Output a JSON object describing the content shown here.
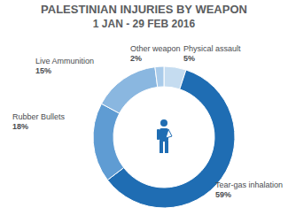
{
  "chart_data": {
    "type": "pie",
    "title": "PALESTINIAN INJURIES BY WEAPON",
    "subtitle": "1 JAN - 29 FEB 2016",
    "categories": [
      "Physical assault",
      "Tear-gas inhalation",
      "Rubber Bullets",
      "Live Ammunition",
      "Other weapon"
    ],
    "values": [
      5,
      59,
      18,
      15,
      2
    ],
    "value_labels": [
      "5%",
      "59%",
      "18%",
      "15%",
      "2%"
    ],
    "colors": [
      "#c5dcf0",
      "#1f6db3",
      "#5f9cd3",
      "#8ab7e0",
      "#a9cbea"
    ],
    "data_labels": true
  }
}
